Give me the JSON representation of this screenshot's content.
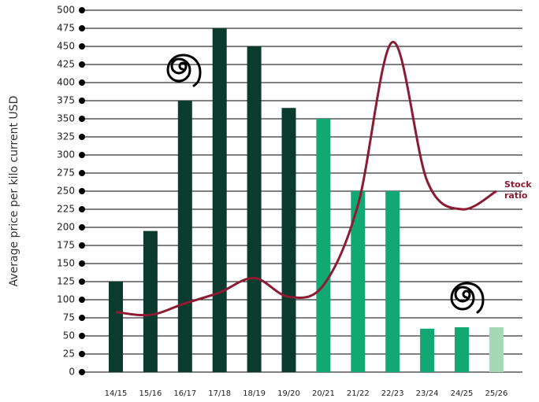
{
  "chart_data": {
    "type": "bar",
    "y_axis_label": "Average price per kilo current USD",
    "categories": [
      "14/15",
      "15/16",
      "16/17",
      "17/18",
      "18/19",
      "19/20",
      "20/21",
      "21/22",
      "22/23",
      "23/24",
      "24/25",
      "25/26"
    ],
    "values": [
      125,
      195,
      375,
      475,
      450,
      365,
      350,
      250,
      250,
      60,
      62,
      62
    ],
    "colors": [
      "#0b3b2c",
      "#0b3b2c",
      "#0b3b2c",
      "#0b3b2c",
      "#0b3b2c",
      "#0b3b2c",
      "#12a874",
      "#12a874",
      "#12a874",
      "#12a874",
      "#12a874",
      "#a6d7b6"
    ],
    "line_series": {
      "name": "Stock ratio",
      "color": "#8c1b33",
      "values": [
        83,
        79,
        95,
        110,
        130,
        104,
        120,
        231,
        456,
        264,
        225,
        250
      ]
    },
    "ylim": [
      0,
      500
    ],
    "yticks": [
      0,
      25,
      50,
      75,
      100,
      125,
      150,
      175,
      200,
      225,
      250,
      275,
      300,
      325,
      350,
      375,
      400,
      425,
      450,
      475,
      500
    ],
    "grid": true
  }
}
